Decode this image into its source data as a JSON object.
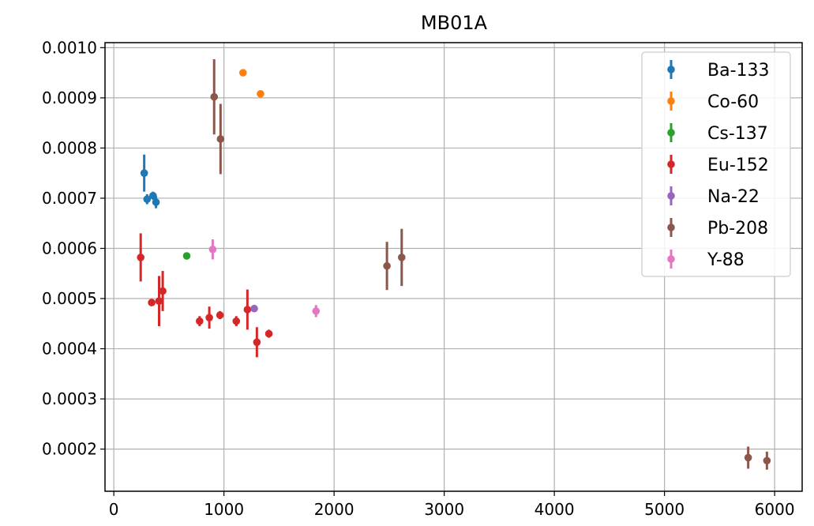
{
  "chart_data": {
    "type": "scatter",
    "title": "MB01A",
    "xlabel": "",
    "ylabel": "",
    "xlim": [
      -80,
      6250
    ],
    "ylim": [
      0.000116,
      0.00101
    ],
    "xticks": [
      0,
      1000,
      2000,
      3000,
      4000,
      5000,
      6000
    ],
    "xtick_labels": [
      "0",
      "1000",
      "2000",
      "3000",
      "4000",
      "5000",
      "6000"
    ],
    "yticks": [
      0.0002,
      0.0003,
      0.0004,
      0.0005,
      0.0006,
      0.0007,
      0.0008,
      0.0009,
      0.001
    ],
    "ytick_labels": [
      "0.0002",
      "0.0003",
      "0.0004",
      "0.0005",
      "0.0006",
      "0.0007",
      "0.0008",
      "0.0009",
      "0.0010"
    ],
    "grid": true,
    "legend_position": "top-right",
    "error_bars": true,
    "series": [
      {
        "name": "Ba-133",
        "color": "#1f77b4",
        "points": [
          {
            "x": 276,
            "y": 0.00075,
            "err": 3.7e-05
          },
          {
            "x": 302,
            "y": 0.000698,
            "err": 1e-05
          },
          {
            "x": 356,
            "y": 0.000705,
            "err": 8e-06
          },
          {
            "x": 383,
            "y": 0.000692,
            "err": 1.2e-05
          }
        ]
      },
      {
        "name": "Co-60",
        "color": "#ff7f0e",
        "points": [
          {
            "x": 1173,
            "y": 0.00095,
            "err": 3e-06
          },
          {
            "x": 1332,
            "y": 0.000908,
            "err": 3e-06
          }
        ]
      },
      {
        "name": "Cs-137",
        "color": "#2ca02c",
        "points": [
          {
            "x": 662,
            "y": 0.000585,
            "err": 4e-06
          }
        ]
      },
      {
        "name": "Eu-152",
        "color": "#d62728",
        "points": [
          {
            "x": 244,
            "y": 0.000582,
            "err": 4.8e-05
          },
          {
            "x": 344,
            "y": 0.000492,
            "err": 6e-06
          },
          {
            "x": 411,
            "y": 0.000495,
            "err": 5e-05
          },
          {
            "x": 444,
            "y": 0.000515,
            "err": 4e-05
          },
          {
            "x": 779,
            "y": 0.000455,
            "err": 1e-05
          },
          {
            "x": 867,
            "y": 0.000462,
            "err": 2.2e-05
          },
          {
            "x": 964,
            "y": 0.000467,
            "err": 8e-06
          },
          {
            "x": 1112,
            "y": 0.000455,
            "err": 1e-05
          },
          {
            "x": 1213,
            "y": 0.000478,
            "err": 4e-05
          },
          {
            "x": 1299,
            "y": 0.000413,
            "err": 3e-05
          },
          {
            "x": 1408,
            "y": 0.00043,
            "err": 8e-06
          }
        ]
      },
      {
        "name": "Na-22",
        "color": "#9467bd",
        "points": [
          {
            "x": 1275,
            "y": 0.00048,
            "err": 6e-06
          }
        ]
      },
      {
        "name": "Pb-208",
        "color": "#8c564b",
        "points": [
          {
            "x": 911,
            "y": 0.000902,
            "err": 7.5e-05
          },
          {
            "x": 969,
            "y": 0.000818,
            "err": 7e-05
          },
          {
            "x": 2480,
            "y": 0.000565,
            "err": 4.8e-05
          },
          {
            "x": 2614,
            "y": 0.000582,
            "err": 5.7e-05
          },
          {
            "x": 5760,
            "y": 0.000183,
            "err": 2.2e-05
          },
          {
            "x": 5930,
            "y": 0.000177,
            "err": 1.8e-05
          }
        ]
      },
      {
        "name": "Y-88",
        "color": "#e377c2",
        "points": [
          {
            "x": 898,
            "y": 0.000598,
            "err": 2e-05
          },
          {
            "x": 1836,
            "y": 0.000475,
            "err": 1.2e-05
          }
        ]
      }
    ]
  }
}
